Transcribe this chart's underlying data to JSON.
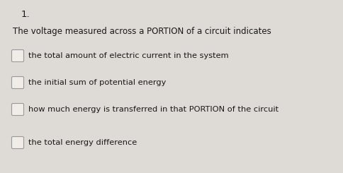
{
  "question_number": "1.",
  "question_text": "The voltage measured across a PORTION of a circuit indicates",
  "options": [
    "the total amount of electric current in the system",
    "the initial sum of potential energy",
    "how much energy is transferred in that PORTION of the circuit",
    "the total energy difference"
  ],
  "bg_color": "#dedad5",
  "text_color": "#1a1a1a",
  "question_fontsize": 8.5,
  "option_fontsize": 8.2,
  "number_fontsize": 9.5,
  "checkbox_color": "#f0ede8",
  "checkbox_edge_color": "#999999"
}
